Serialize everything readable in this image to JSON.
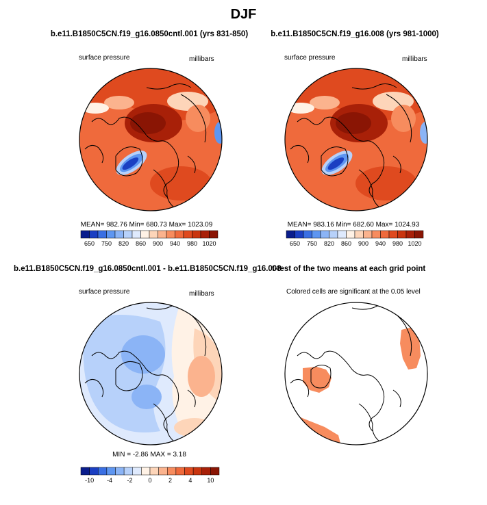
{
  "page": {
    "title": "DJF"
  },
  "panels": [
    {
      "title": "b.e11.B1850C5CN.f19_g16.0850cntl.001 (yrs 831-850)",
      "left_label": "surface pressure",
      "right_label": "millibars",
      "stats": "MEAN= 982.76  Min= 680.73  Max= 1023.09"
    },
    {
      "title": "b.e11.B1850C5CN.f19_g16.008 (yrs 981-1000)",
      "left_label": "surface pressure",
      "right_label": "millibars",
      "stats": "MEAN= 983.16  Min= 682.60  Max= 1024.93"
    },
    {
      "title": "b.e11.B1850C5CN.f19_g16.0850cntl.001 - b.e11.B1850C5CN.f19_g16.008",
      "left_label": "surface pressure",
      "right_label": "millibars",
      "stats": "MIN =  -2.86 MAX =   3.18"
    },
    {
      "title": "t-test of the two means at each grid point",
      "left_label": "Colored cells are significant at the 0.05 level"
    }
  ],
  "colorbars": {
    "absolute": {
      "labels": [
        "650",
        "750",
        "820",
        "860",
        "900",
        "940",
        "980",
        "1020"
      ],
      "colors": [
        "#0a1d8c",
        "#1b3fc2",
        "#3a6fe3",
        "#5e96f1",
        "#8bb4f6",
        "#b7d1fa",
        "#dfeafd",
        "#fff2e6",
        "#fdd5b9",
        "#fbb38e",
        "#f78c5e",
        "#ef6a3c",
        "#df4a1f",
        "#c9350f",
        "#a82008",
        "#8a1504"
      ]
    },
    "difference": {
      "labels": [
        "-10",
        "-4",
        "-2",
        "0",
        "2",
        "4",
        "10"
      ],
      "colors": [
        "#0a1d8c",
        "#1b3fc2",
        "#3a6fe3",
        "#5e96f1",
        "#8bb4f6",
        "#b7d1fa",
        "#dfeafd",
        "#fff2e6",
        "#fdd5b9",
        "#fbb38e",
        "#f78c5e",
        "#ef6a3c",
        "#df4a1f",
        "#c9350f",
        "#a82008",
        "#8a1504"
      ]
    }
  },
  "chart_data": [
    {
      "type": "heatmap",
      "projection": "north polar stereographic",
      "title": "b.e11.B1850C5CN.f19_g16.0850cntl.001 (yrs 831-850)",
      "variable": "surface pressure",
      "units": "millibars",
      "mean": 982.76,
      "min": 680.73,
      "max": 1023.09,
      "levels": [
        650,
        750,
        820,
        860,
        900,
        940,
        980,
        1020
      ]
    },
    {
      "type": "heatmap",
      "projection": "north polar stereographic",
      "title": "b.e11.B1850C5CN.f19_g16.008 (yrs 981-1000)",
      "variable": "surface pressure",
      "units": "millibars",
      "mean": 983.16,
      "min": 682.6,
      "max": 1024.93,
      "levels": [
        650,
        750,
        820,
        860,
        900,
        940,
        980,
        1020
      ]
    },
    {
      "type": "heatmap",
      "projection": "north polar stereographic",
      "title": "b.e11.B1850C5CN.f19_g16.0850cntl.001 - b.e11.B1850C5CN.f19_g16.008",
      "variable": "surface pressure",
      "units": "millibars",
      "min": -2.86,
      "max": 3.18,
      "levels": [
        -10,
        -4,
        -2,
        0,
        2,
        4,
        10
      ]
    },
    {
      "type": "heatmap",
      "projection": "north polar stereographic",
      "title": "t-test of the two means at each grid point",
      "note": "Colored cells are significant at the 0.05 level",
      "significance_level": 0.05
    }
  ]
}
